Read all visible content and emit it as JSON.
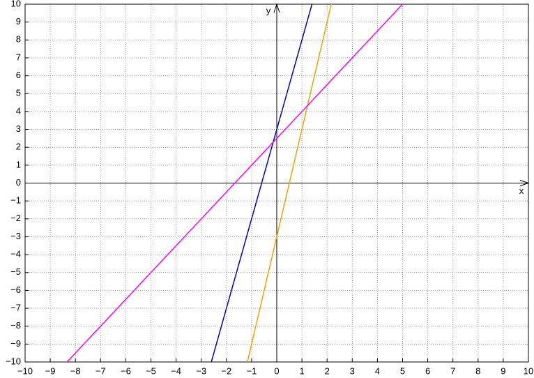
{
  "chart_data": {
    "type": "line",
    "x_label": "x",
    "y_label": "y",
    "xlim": [
      -10,
      10
    ],
    "ylim": [
      -10,
      10
    ],
    "xticks": [
      {
        "value": -10,
        "label": "−10"
      },
      {
        "value": -9,
        "label": "−9"
      },
      {
        "value": -8,
        "label": "−8"
      },
      {
        "value": -7,
        "label": "−7"
      },
      {
        "value": -6,
        "label": "−6"
      },
      {
        "value": -5,
        "label": "−5"
      },
      {
        "value": -4,
        "label": "−4"
      },
      {
        "value": -3,
        "label": "−3"
      },
      {
        "value": -2,
        "label": "−2"
      },
      {
        "value": -1,
        "label": "−1"
      },
      0,
      1,
      2,
      3,
      4,
      5,
      6,
      7,
      8,
      9,
      10
    ],
    "yticks": [
      {
        "value": -10,
        "label": "−10"
      },
      {
        "value": -9,
        "label": "−9"
      },
      {
        "value": -8,
        "label": "−8"
      },
      {
        "value": -7,
        "label": "−7"
      },
      {
        "value": -6,
        "label": "−6"
      },
      {
        "value": -5,
        "label": "−5"
      },
      {
        "value": -4,
        "label": "−4"
      },
      {
        "value": -3,
        "label": "−3"
      },
      {
        "value": -2,
        "label": "−2"
      },
      {
        "value": -1,
        "label": "−1"
      },
      0,
      1,
      2,
      3,
      4,
      5,
      6,
      7,
      8,
      9,
      10
    ],
    "grid": true,
    "series": [
      {
        "color": "#0000cc",
        "x": [
          -2.6,
          1.4
        ],
        "values": [
          -10,
          10
        ]
      },
      {
        "color": "#f0a000",
        "x": [
          -1.1667,
          2.1667
        ],
        "values": [
          -10,
          10
        ]
      },
      {
        "color": "#ff00ff",
        "x": [
          -8.3333,
          5
        ],
        "values": [
          -10,
          10
        ]
      }
    ]
  }
}
